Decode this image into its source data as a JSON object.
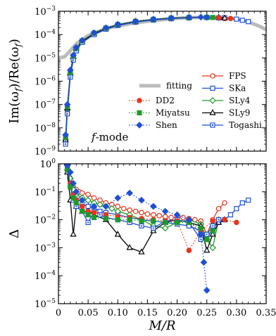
{
  "chart_data": [
    {
      "type": "line",
      "ylabel": "Im(ω_f)/Re(ω_f)",
      "yscale": "log",
      "ylim": [
        1e-09,
        0.001
      ],
      "xlim": [
        0,
        0.35
      ],
      "yticklabels": [
        "10^-9",
        "10^-8",
        "10^-7",
        "10^-6",
        "10^-5",
        "10^-4",
        "10^-3"
      ],
      "annotation": "f-mode",
      "legend_placement": "lower-right",
      "fitting": {
        "name": "fitting",
        "color": "#bbbbbb",
        "x": [
          0.0,
          0.01,
          0.02,
          0.03,
          0.05,
          0.08,
          0.12,
          0.16,
          0.2,
          0.24,
          0.27,
          0.3,
          0.32,
          0.34,
          0.35
        ],
        "y": [
          1e-05,
          1.1e-05,
          2e-05,
          4e-05,
          9e-05,
          0.00018,
          0.00029,
          0.0004,
          0.0005,
          0.00055,
          0.00054,
          0.00046,
          0.00035,
          0.00022,
          0.00016
        ]
      },
      "series": [
        {
          "name": "FPS",
          "color": "#e8351d",
          "marker": "circle-open",
          "dash": "solid",
          "x": [
            0.012,
            0.015,
            0.02,
            0.025,
            0.03,
            0.04,
            0.06,
            0.08,
            0.1,
            0.13,
            0.16,
            0.19,
            0.22,
            0.25,
            0.27,
            0.28
          ],
          "y": [
            3e-09,
            6e-08,
            2e-06,
            1e-05,
            2.5e-05,
            5e-05,
            0.00011,
            0.00018,
            0.00026,
            0.00036,
            0.00044,
            0.0005,
            0.00054,
            0.00055,
            0.00052,
            0.00049
          ]
        },
        {
          "name": "SKa",
          "color": "#1f4fd6",
          "marker": "square-open",
          "dash": "solid",
          "x": [
            0.012,
            0.015,
            0.02,
            0.025,
            0.03,
            0.04,
            0.06,
            0.08,
            0.1,
            0.13,
            0.16,
            0.19,
            0.22,
            0.25,
            0.28,
            0.3,
            0.31,
            0.32
          ],
          "y": [
            2.5e-09,
            5e-08,
            1.8e-06,
            9e-06,
            2.2e-05,
            4.8e-05,
            0.000105,
            0.000175,
            0.00025,
            0.00035,
            0.00043,
            0.00049,
            0.00053,
            0.00055,
            0.00052,
            0.00046,
            0.00041,
            0.00036
          ]
        },
        {
          "name": "SLy4",
          "color": "#1f9a2a",
          "marker": "diamond-open",
          "dash": "solid",
          "x": [
            0.012,
            0.015,
            0.02,
            0.025,
            0.03,
            0.04,
            0.06,
            0.08,
            0.1,
            0.13,
            0.16,
            0.19,
            0.22,
            0.25,
            0.27
          ],
          "y": [
            3e-09,
            6e-08,
            2e-06,
            1e-05,
            2.4e-05,
            5e-05,
            0.00011,
            0.00018,
            0.00026,
            0.00036,
            0.00044,
            0.0005,
            0.00054,
            0.00055,
            0.00053
          ]
        },
        {
          "name": "SLy9",
          "color": "#000000",
          "marker": "triangle-open",
          "dash": "solid",
          "x": [
            0.012,
            0.015,
            0.02,
            0.025,
            0.03,
            0.04,
            0.06,
            0.08,
            0.1,
            0.13,
            0.16,
            0.19,
            0.22,
            0.25,
            0.27,
            0.28
          ],
          "y": [
            3e-09,
            7e-08,
            2.2e-06,
            1.1e-05,
            2.5e-05,
            5.2e-05,
            0.00011,
            0.000185,
            0.00027,
            0.00037,
            0.00045,
            0.00051,
            0.00055,
            0.00056,
            0.00054,
            0.00051
          ]
        },
        {
          "name": "Togashi",
          "color": "#1f4fd6",
          "marker": "square-dot",
          "dash": "solid",
          "x": [
            0.012,
            0.015,
            0.02,
            0.025,
            0.03,
            0.04,
            0.06,
            0.08,
            0.1,
            0.13,
            0.16,
            0.19,
            0.22,
            0.25,
            0.27
          ],
          "y": [
            2e-09,
            4e-08,
            1.5e-06,
            8e-06,
            2e-05,
            4.6e-05,
            0.0001,
            0.00017,
            0.000245,
            0.00034,
            0.00042,
            0.00048,
            0.00052,
            0.00054,
            0.00052
          ]
        },
        {
          "name": "DD2",
          "color": "#e8351d",
          "marker": "circle-filled",
          "dash": "dotted",
          "x": [
            0.012,
            0.015,
            0.02,
            0.025,
            0.03,
            0.04,
            0.06,
            0.08,
            0.1,
            0.13,
            0.16,
            0.19,
            0.22,
            0.25,
            0.27,
            0.29
          ],
          "y": [
            4e-09,
            8e-08,
            2.5e-06,
            1.2e-05,
            2.7e-05,
            5.5e-05,
            0.000115,
            0.00019,
            0.00027,
            0.00037,
            0.00045,
            0.00051,
            0.00054,
            0.00055,
            0.00053,
            0.00049
          ]
        },
        {
          "name": "Miyatsu",
          "color": "#1f9a2a",
          "marker": "square-filled",
          "dash": "dotted",
          "x": [
            0.012,
            0.015,
            0.02,
            0.025,
            0.03,
            0.04,
            0.06,
            0.08,
            0.1,
            0.13,
            0.16,
            0.19,
            0.22,
            0.25,
            0.26
          ],
          "y": [
            4e-09,
            8e-08,
            2.4e-06,
            1.2e-05,
            2.6e-05,
            5.4e-05,
            0.000115,
            0.00019,
            0.00027,
            0.00037,
            0.00045,
            0.00051,
            0.00054,
            0.00055,
            0.00054
          ]
        },
        {
          "name": "Shen",
          "color": "#1f4fd6",
          "marker": "diamond-filled",
          "dash": "dotted",
          "x": [
            0.012,
            0.015,
            0.02,
            0.025,
            0.03,
            0.04,
            0.06,
            0.08,
            0.1,
            0.13,
            0.16,
            0.19,
            0.22,
            0.24,
            0.25
          ],
          "y": [
            5e-09,
            1e-07,
            3e-06,
            1.3e-05,
            2.8e-05,
            5.6e-05,
            0.00012,
            0.000195,
            0.000275,
            0.000375,
            0.00046,
            0.00052,
            0.00055,
            0.00056,
            0.00055
          ]
        }
      ]
    },
    {
      "type": "line",
      "xlabel": "M/R",
      "ylabel": "Δ",
      "yscale": "log",
      "ylim": [
        1e-05,
        1
      ],
      "xlim": [
        0,
        0.35
      ],
      "xticklabels": [
        "0",
        "0.05",
        "0.10",
        "0.15",
        "0.20",
        "0.25",
        "0.30",
        "0.35"
      ],
      "yticklabels": [
        "10^-5",
        "10^-4",
        "10^-3",
        "10^-2",
        "10^-1",
        "10^0"
      ],
      "series": [
        {
          "name": "FPS",
          "color": "#e8351d",
          "marker": "circle-open",
          "dash": "solid",
          "x": [
            0.015,
            0.02,
            0.025,
            0.03,
            0.035,
            0.04,
            0.05,
            0.06,
            0.07,
            0.08,
            0.09,
            0.1,
            0.11,
            0.12,
            0.13,
            0.14,
            0.15,
            0.16,
            0.17,
            0.18,
            0.19,
            0.2,
            0.21,
            0.22,
            0.23,
            0.24,
            0.25,
            0.26,
            0.27,
            0.28
          ],
          "y": [
            0.7,
            0.3,
            0.15,
            0.12,
            0.1,
            0.09,
            0.08,
            0.06,
            0.05,
            0.04,
            0.035,
            0.03,
            0.025,
            0.022,
            0.02,
            0.018,
            0.016,
            0.015,
            0.014,
            0.013,
            0.012,
            0.012,
            0.012,
            0.011,
            0.01,
            0.009,
            0.003,
            0.01,
            0.025,
            0.04
          ]
        },
        {
          "name": "SKa",
          "color": "#1f4fd6",
          "marker": "square-open",
          "dash": "solid",
          "x": [
            0.015,
            0.02,
            0.025,
            0.03,
            0.035,
            0.04,
            0.05,
            0.06,
            0.07,
            0.08,
            0.1,
            0.12,
            0.14,
            0.16,
            0.18,
            0.2,
            0.22,
            0.24,
            0.25,
            0.26,
            0.27,
            0.28,
            0.29,
            0.3,
            0.31,
            0.32
          ],
          "y": [
            0.8,
            0.2,
            0.08,
            0.05,
            0.04,
            0.035,
            0.03,
            0.025,
            0.02,
            0.018,
            0.015,
            0.012,
            0.01,
            0.009,
            0.008,
            0.007,
            0.006,
            0.004,
            0.002,
            0.005,
            0.008,
            0.01,
            0.015,
            0.025,
            0.04,
            0.05
          ]
        },
        {
          "name": "SLy4",
          "color": "#1f9a2a",
          "marker": "diamond-open",
          "dash": "solid",
          "x": [
            0.015,
            0.02,
            0.025,
            0.03,
            0.04,
            0.05,
            0.06,
            0.07,
            0.08,
            0.09,
            0.1,
            0.12,
            0.14,
            0.16,
            0.18,
            0.2,
            0.22,
            0.24,
            0.25,
            0.26,
            0.27
          ],
          "y": [
            0.6,
            0.3,
            0.12,
            0.08,
            0.06,
            0.05,
            0.04,
            0.035,
            0.03,
            0.025,
            0.02,
            0.015,
            0.01,
            0.006,
            0.005,
            0.008,
            0.01,
            0.007,
            0.002,
            0.001,
            0.01
          ]
        },
        {
          "name": "SLy9",
          "color": "#000000",
          "marker": "triangle-open",
          "dash": "solid",
          "x": [
            0.015,
            0.02,
            0.025,
            0.03,
            0.04,
            0.05,
            0.06,
            0.08,
            0.1,
            0.12,
            0.14,
            0.16,
            0.18,
            0.2,
            0.22,
            0.24,
            0.25,
            0.26,
            0.27,
            0.28
          ],
          "y": [
            0.5,
            0.05,
            0.003,
            0.03,
            0.02,
            0.02,
            0.015,
            0.01,
            0.003,
            0.001,
            0.0007,
            0.004,
            0.008,
            0.01,
            0.008,
            0.006,
            0.0008,
            0.003,
            0.008,
            0.01
          ]
        },
        {
          "name": "Togashi",
          "color": "#1f4fd6",
          "marker": "square-dot",
          "dash": "solid",
          "x": [
            0.015,
            0.02,
            0.025,
            0.03,
            0.04,
            0.05,
            0.06,
            0.07,
            0.08,
            0.1,
            0.12,
            0.14,
            0.16,
            0.18,
            0.2,
            0.22,
            0.24,
            0.25,
            0.26,
            0.27
          ],
          "y": [
            0.9,
            0.15,
            0.05,
            0.03,
            0.02,
            0.008,
            0.02,
            0.015,
            0.012,
            0.01,
            0.008,
            0.006,
            0.005,
            0.009,
            0.01,
            0.008,
            0.002,
            0.003,
            0.006,
            0.01
          ]
        },
        {
          "name": "DD2",
          "color": "#e8351d",
          "marker": "circle-filled",
          "dash": "dotted",
          "x": [
            0.015,
            0.02,
            0.025,
            0.03,
            0.04,
            0.05,
            0.06,
            0.08,
            0.1,
            0.12,
            0.14,
            0.16,
            0.18,
            0.2,
            0.22,
            0.24,
            0.26,
            0.28,
            0.3
          ],
          "y": [
            0.6,
            0.2,
            0.08,
            0.05,
            0.03,
            0.02,
            0.018,
            0.015,
            0.013,
            0.012,
            0.011,
            0.01,
            0.009,
            0.009,
            0.0008,
            0.004,
            0.009,
            0.01,
            0.008
          ]
        },
        {
          "name": "Miyatsu",
          "color": "#1f9a2a",
          "marker": "square-filled",
          "dash": "dotted",
          "x": [
            0.015,
            0.02,
            0.025,
            0.03,
            0.04,
            0.05,
            0.06,
            0.08,
            0.1,
            0.12,
            0.14,
            0.16,
            0.18,
            0.2,
            0.22,
            0.24,
            0.25,
            0.26
          ],
          "y": [
            0.6,
            0.15,
            0.06,
            0.04,
            0.02,
            0.015,
            0.012,
            0.011,
            0.01,
            0.01,
            0.009,
            0.009,
            0.008,
            0.008,
            0.008,
            0.005,
            0.002,
            0.004
          ]
        },
        {
          "name": "Shen",
          "color": "#1f4fd6",
          "marker": "diamond-filled",
          "dash": "dotted",
          "x": [
            0.015,
            0.02,
            0.025,
            0.03,
            0.04,
            0.06,
            0.08,
            0.1,
            0.12,
            0.14,
            0.16,
            0.18,
            0.2,
            0.22,
            0.24,
            0.245,
            0.25
          ],
          "y": [
            0.9,
            0.5,
            0.2,
            0.1,
            0.05,
            0.03,
            0.03,
            0.06,
            0.09,
            0.05,
            0.03,
            0.02,
            0.015,
            0.01,
            0.003,
            0.0003,
            3e-05
          ]
        }
      ]
    }
  ]
}
